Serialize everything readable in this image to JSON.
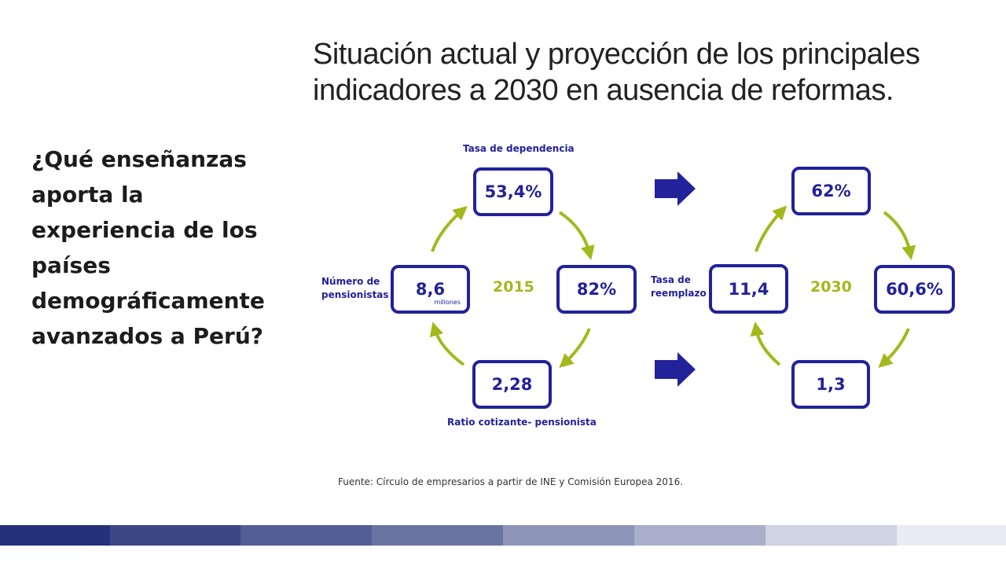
{
  "title": "Situación actual y proyección de los principales indicadores a 2030 en ausencia de reformas.",
  "question": "¿Qué enseñanzas aporta la experiencia de los países demográficamente avanzados a Perú?",
  "source": "Fuente: Círculo de empresarios a partir de INE y Comisión Europea 2016.",
  "labels": {
    "tasa_dependencia": "Tasa de dependencia",
    "numero_pensionistas_1": "Número de",
    "numero_pensionistas_2": "pensionistas",
    "tasa_reemplazo_1": "Tasa de",
    "tasa_reemplazo_2": "reemplazo",
    "ratio": "Ratio cotizante- pensionista"
  },
  "cycle_2015": {
    "year": "2015",
    "tasa_dependencia": "53,4%",
    "tasa_reemplazo": "82%",
    "ratio": "2,28",
    "pensionistas": "8,6",
    "pensionistas_unit": "millones"
  },
  "cycle_2030": {
    "year": "2030",
    "tasa_dependencia": "62%",
    "tasa_reemplazo": "60,6%",
    "ratio": "1,3",
    "pensionistas": "11,4"
  },
  "colors": {
    "box_border": "#22229a",
    "arrow_green": "#a3b81c",
    "footer_bands": [
      "#25327a",
      "#3b4787",
      "#525e95",
      "#6a74a2",
      "#8c94b8",
      "#a9afcb",
      "#cfd3e2",
      "#e9ebf2"
    ]
  }
}
